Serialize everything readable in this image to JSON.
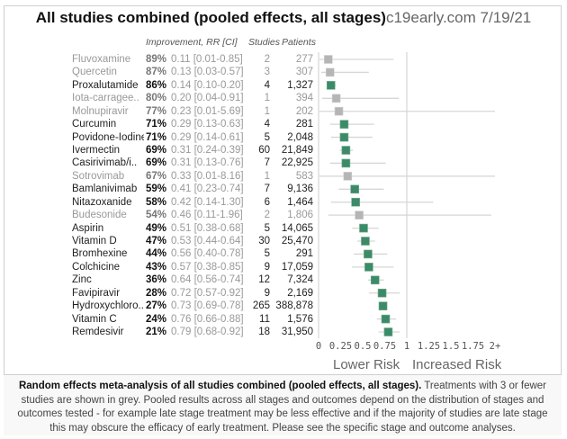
{
  "title": {
    "main": "All studies combined (pooled effects, all stages)",
    "site": "c19early.com 7/19/21"
  },
  "headers": {
    "improvement": "Improvement, RR [CI]",
    "studies": "Studies",
    "patients": "Patients"
  },
  "colors": {
    "strong": "#3d8a68",
    "weak": "#b5b5b5",
    "ci_line": "#d6d6d6",
    "ref_line": "#d6d6d6"
  },
  "chart_data": {
    "type": "forest",
    "title": "All studies combined (pooled effects, all stages)",
    "xlabel_left": "Lower Risk",
    "xlabel_right": "Increased Risk",
    "xlim": [
      0,
      2
    ],
    "ref_value": 1,
    "x_ticks": [
      "0",
      "0.25",
      "0.5",
      "0.75",
      "1",
      "1.25",
      "1.5",
      "1.75",
      "2+"
    ],
    "grid": false,
    "rows": [
      {
        "name": "Fluvoxamine",
        "improvement": "89%",
        "rr": 0.11,
        "ci_low": 0.01,
        "ci_high": 0.85,
        "rr_text": "0.11 [0.01-0.85]",
        "studies": "2",
        "patients": "277",
        "grey": true
      },
      {
        "name": "Quercetin",
        "improvement": "87%",
        "rr": 0.13,
        "ci_low": 0.03,
        "ci_high": 0.57,
        "rr_text": "0.13 [0.03-0.57]",
        "studies": "3",
        "patients": "307",
        "grey": true
      },
      {
        "name": "Proxalutamide",
        "improvement": "86%",
        "rr": 0.14,
        "ci_low": 0.1,
        "ci_high": 0.2,
        "rr_text": "0.14 [0.10-0.20]",
        "studies": "4",
        "patients": "1,327",
        "grey": false
      },
      {
        "name": "Iota-carragee..",
        "improvement": "80%",
        "rr": 0.2,
        "ci_low": 0.04,
        "ci_high": 0.91,
        "rr_text": "0.20 [0.04-0.91]",
        "studies": "1",
        "patients": "394",
        "grey": true
      },
      {
        "name": "Molnupiravir",
        "improvement": "77%",
        "rr": 0.23,
        "ci_low": 0.01,
        "ci_high": 5.69,
        "rr_text": "0.23 [0.01-5.69]",
        "studies": "1",
        "patients": "202",
        "grey": true
      },
      {
        "name": "Curcumin",
        "improvement": "71%",
        "rr": 0.29,
        "ci_low": 0.13,
        "ci_high": 0.63,
        "rr_text": "0.29 [0.13-0.63]",
        "studies": "4",
        "patients": "281",
        "grey": false
      },
      {
        "name": "Povidone-Iodine",
        "improvement": "71%",
        "rr": 0.29,
        "ci_low": 0.14,
        "ci_high": 0.61,
        "rr_text": "0.29 [0.14-0.61]",
        "studies": "5",
        "patients": "2,048",
        "grey": false
      },
      {
        "name": "Ivermectin",
        "improvement": "69%",
        "rr": 0.31,
        "ci_low": 0.24,
        "ci_high": 0.39,
        "rr_text": "0.31 [0.24-0.39]",
        "studies": "60",
        "patients": "21,849",
        "grey": false
      },
      {
        "name": "Casirivimab/i..",
        "improvement": "69%",
        "rr": 0.31,
        "ci_low": 0.13,
        "ci_high": 0.76,
        "rr_text": "0.31 [0.13-0.76]",
        "studies": "7",
        "patients": "22,925",
        "grey": false
      },
      {
        "name": "Sotrovimab",
        "improvement": "67%",
        "rr": 0.33,
        "ci_low": 0.01,
        "ci_high": 8.16,
        "rr_text": "0.33 [0.01-8.16]",
        "studies": "1",
        "patients": "583",
        "grey": true
      },
      {
        "name": "Bamlanivimab",
        "improvement": "59%",
        "rr": 0.41,
        "ci_low": 0.23,
        "ci_high": 0.74,
        "rr_text": "0.41 [0.23-0.74]",
        "studies": "7",
        "patients": "9,136",
        "grey": false
      },
      {
        "name": "Nitazoxanide",
        "improvement": "58%",
        "rr": 0.42,
        "ci_low": 0.14,
        "ci_high": 1.3,
        "rr_text": "0.42 [0.14-1.30]",
        "studies": "6",
        "patients": "1,464",
        "grey": false
      },
      {
        "name": "Budesonide",
        "improvement": "54%",
        "rr": 0.46,
        "ci_low": 0.11,
        "ci_high": 1.96,
        "rr_text": "0.46 [0.11-1.96]",
        "studies": "2",
        "patients": "1,806",
        "grey": true
      },
      {
        "name": "Aspirin",
        "improvement": "49%",
        "rr": 0.51,
        "ci_low": 0.38,
        "ci_high": 0.68,
        "rr_text": "0.51 [0.38-0.68]",
        "studies": "5",
        "patients": "14,065",
        "grey": false
      },
      {
        "name": "Vitamin D",
        "improvement": "47%",
        "rr": 0.53,
        "ci_low": 0.44,
        "ci_high": 0.64,
        "rr_text": "0.53 [0.44-0.64]",
        "studies": "30",
        "patients": "25,470",
        "grey": false
      },
      {
        "name": "Bromhexine",
        "improvement": "44%",
        "rr": 0.56,
        "ci_low": 0.4,
        "ci_high": 0.78,
        "rr_text": "0.56 [0.40-0.78]",
        "studies": "5",
        "patients": "291",
        "grey": false
      },
      {
        "name": "Colchicine",
        "improvement": "43%",
        "rr": 0.57,
        "ci_low": 0.38,
        "ci_high": 0.85,
        "rr_text": "0.57 [0.38-0.85]",
        "studies": "9",
        "patients": "17,059",
        "grey": false
      },
      {
        "name": "Zinc",
        "improvement": "36%",
        "rr": 0.64,
        "ci_low": 0.56,
        "ci_high": 0.74,
        "rr_text": "0.64 [0.56-0.74]",
        "studies": "12",
        "patients": "7,324",
        "grey": false
      },
      {
        "name": "Favipiravir",
        "improvement": "28%",
        "rr": 0.72,
        "ci_low": 0.57,
        "ci_high": 0.92,
        "rr_text": "0.72 [0.57-0.92]",
        "studies": "9",
        "patients": "2,169",
        "grey": false
      },
      {
        "name": "Hydroxychloro..",
        "improvement": "27%",
        "rr": 0.73,
        "ci_low": 0.69,
        "ci_high": 0.78,
        "rr_text": "0.73 [0.69-0.78]",
        "studies": "265",
        "patients": "388,878",
        "grey": false
      },
      {
        "name": "Vitamin C",
        "improvement": "24%",
        "rr": 0.76,
        "ci_low": 0.66,
        "ci_high": 0.88,
        "rr_text": "0.76 [0.66-0.88]",
        "studies": "11",
        "patients": "1,576",
        "grey": false
      },
      {
        "name": "Remdesivir",
        "improvement": "21%",
        "rr": 0.79,
        "ci_low": 0.68,
        "ci_high": 0.92,
        "rr_text": "0.79 [0.68-0.92]",
        "studies": "18",
        "patients": "31,950",
        "grey": false
      }
    ]
  },
  "caption": {
    "bold": "Random effects meta-analysis of all studies combined (pooled effects, all stages).",
    "text": " Treatments with 3 or fewer studies are shown in grey. Pooled results across all stages and outcomes depend on the distribution of stages and outcomes tested - for example late stage treatment may be less effective and if the majority of studies are late stage this may obscure the efficacy of early treatment. Please see the specific stage and outcome analyses."
  }
}
